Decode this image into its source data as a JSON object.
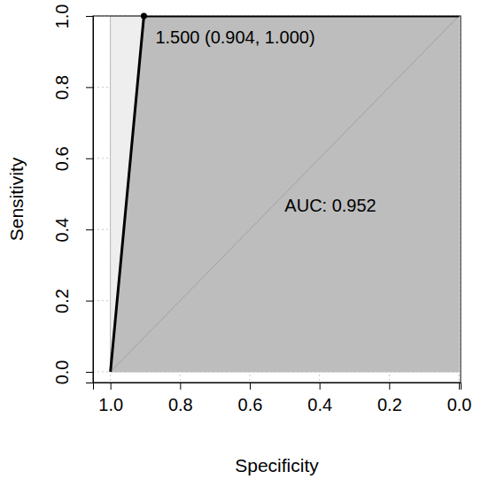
{
  "chart_data": {
    "type": "roc",
    "x_label": "Specificity",
    "y_label": "Sensitivity",
    "x": [
      1.0,
      0.904,
      0.0
    ],
    "values": [
      0.0,
      1.0,
      1.0
    ],
    "color": "#000000",
    "xlim": [
      1.05,
      -0.005
    ],
    "ylim": [
      -0.03,
      1.0
    ],
    "xticks": [
      {
        "value": 1.0,
        "label": "1.0"
      },
      {
        "value": 0.8,
        "label": "0.8"
      },
      {
        "value": 0.6,
        "label": "0.6"
      },
      {
        "value": 0.4,
        "label": "0.4"
      },
      {
        "value": 0.2,
        "label": "0.2"
      },
      {
        "value": 0.0,
        "label": "0.0"
      }
    ],
    "yticks": [
      {
        "value": 0.0,
        "label": "0.0"
      },
      {
        "value": 0.2,
        "label": "0.2"
      },
      {
        "value": 0.4,
        "label": "0.4"
      },
      {
        "value": 0.6,
        "label": "0.6"
      },
      {
        "value": 0.8,
        "label": "0.8"
      },
      {
        "value": 1.0,
        "label": "1.0"
      }
    ],
    "grid": true,
    "annotations": [
      {
        "text": "1.500 (0.904, 1.000)",
        "x": 0.904,
        "y": 1.0
      },
      {
        "text": "AUC: 0.952",
        "x": 0.5,
        "y": 0.45
      }
    ]
  }
}
